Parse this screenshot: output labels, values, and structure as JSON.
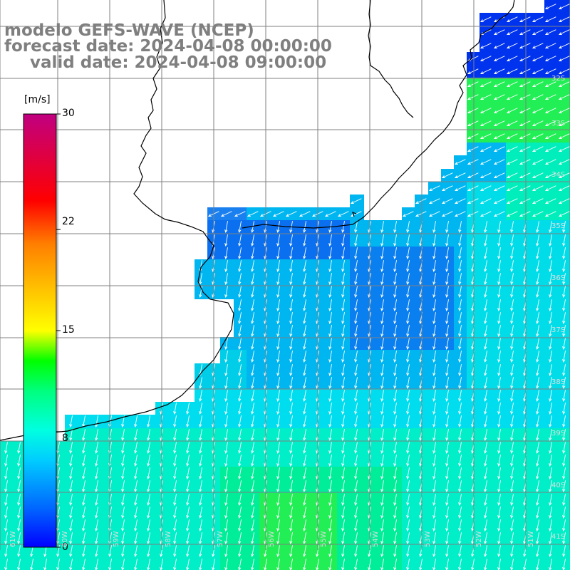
{
  "title": {
    "line1": "modelo GEFS-WAVE (NCEP)",
    "line2": "forecast date: 2024-04-08 00:00:00",
    "line3": "valid date: 2024-04-08 09:00:00"
  },
  "colorbar": {
    "unit": "[m/s]",
    "ticks": [
      "30",
      "22",
      "15",
      "8",
      "0"
    ],
    "tick_values": [
      30,
      22,
      15,
      8,
      0
    ],
    "min": 0,
    "max": 30
  },
  "lat_labels": [
    "32S",
    "33S",
    "34S",
    "35S",
    "36S",
    "37S",
    "38S",
    "39S",
    "40S",
    "41S"
  ],
  "lon_labels": [
    "61W",
    "60W",
    "59W",
    "58W",
    "57W",
    "56W",
    "55W",
    "54W",
    "53W",
    "52W",
    "51W"
  ],
  "colors": {
    "land": "#ffffff",
    "grid": "#808080",
    "coast": "#000000",
    "arrows": "#ffffff",
    "title_text": "#7f7f7f"
  },
  "colormap_stops": [
    "#0000ff",
    "#0066ff",
    "#00ccff",
    "#00ffe0",
    "#00ff7f",
    "#00ff00",
    "#7fff00",
    "#ffff00",
    "#ffbf00",
    "#ff7f00",
    "#ff0000",
    "#e00040",
    "#c00080"
  ],
  "wind_direction": "toward south / south-west"
}
